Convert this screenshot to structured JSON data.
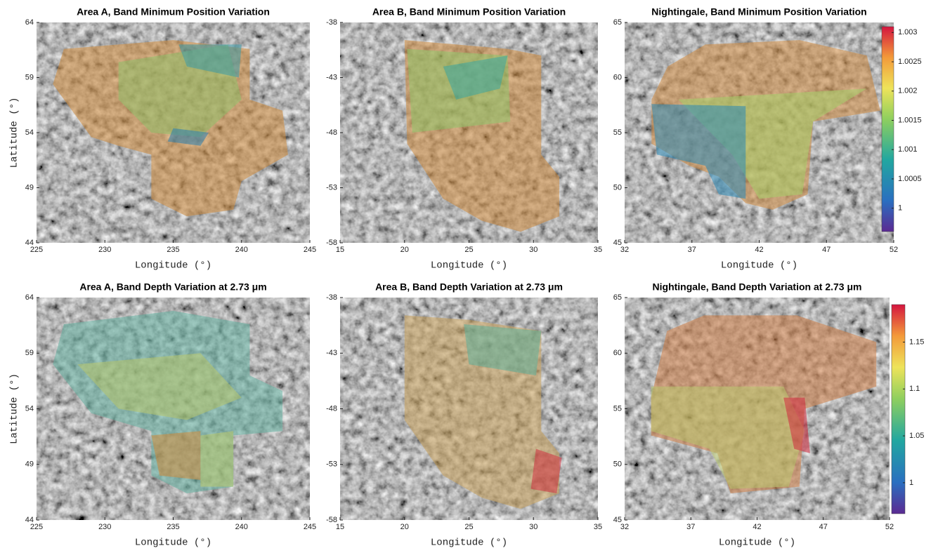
{
  "chart_data": [
    {
      "type": "map",
      "title": "Area A, Band Minimum Position Variation",
      "xlabel": "Longitude (°)",
      "ylabel": "Latitude (°)",
      "xlim": [
        225,
        245
      ],
      "xticks": [
        225,
        230,
        235,
        240,
        245
      ],
      "ylim": [
        44,
        64
      ],
      "yticks": [
        44,
        49,
        54,
        59,
        64
      ]
    },
    {
      "type": "map",
      "title": "Area B, Band Minimum Position Variation",
      "xlabel": "Longitude (°)",
      "xlim": [
        15,
        35
      ],
      "xticks": [
        15,
        20,
        25,
        30,
        35
      ],
      "ylim": [
        -58,
        -38
      ],
      "yticks": [
        -58,
        -53,
        -48,
        -43,
        -38
      ]
    },
    {
      "type": "map",
      "title": "Nightingale, Band Minimum Position Variation",
      "xlabel": "Longitude (°)",
      "xlim": [
        32,
        52
      ],
      "xticks": [
        32,
        37,
        42,
        47,
        52
      ],
      "ylim": [
        45,
        65
      ],
      "yticks": [
        45,
        50,
        55,
        60,
        65
      ],
      "colorbar": {
        "clim": [
          0.9996,
          1.0031
        ],
        "ticks": [
          1,
          1.0005,
          1.001,
          1.0015,
          1.002,
          1.0025,
          1.003
        ]
      }
    },
    {
      "type": "map",
      "title": "Area A, Band Depth Variation at 2.73 μm",
      "xlabel": "Longitude (°)",
      "ylabel": "Latitude (°)",
      "xlim": [
        225,
        245
      ],
      "xticks": [
        225,
        230,
        235,
        240,
        245
      ],
      "ylim": [
        44,
        64
      ],
      "yticks": [
        44,
        49,
        54,
        59,
        64
      ]
    },
    {
      "type": "map",
      "title": "Area B, Band Depth Variation at 2.73 μm",
      "xlabel": "Longitude (°)",
      "xlim": [
        15,
        35
      ],
      "xticks": [
        15,
        20,
        25,
        30,
        35
      ],
      "ylim": [
        -58,
        -38
      ],
      "yticks": [
        -58,
        -53,
        -48,
        -43,
        -38
      ]
    },
    {
      "type": "map",
      "title": "Nightingale, Band Depth Variation at 2.73 μm",
      "xlabel": "Longitude (°)",
      "xlim": [
        32,
        52
      ],
      "xticks": [
        32,
        37,
        42,
        47,
        52
      ],
      "ylim": [
        45,
        65
      ],
      "yticks": [
        45,
        50,
        55,
        60,
        65
      ],
      "colorbar": {
        "clim": [
          0.967,
          1.19
        ],
        "ticks": [
          1,
          1.05,
          1.1,
          1.15
        ]
      }
    }
  ]
}
